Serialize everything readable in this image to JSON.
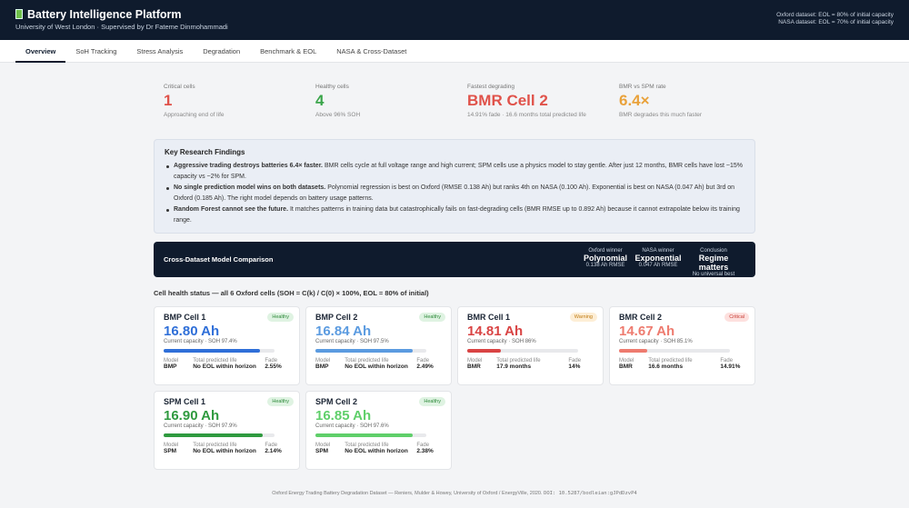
{
  "header": {
    "title": "Battery Intelligence Platform",
    "subtitle": "University of West London · Supervised by Dr Fateme Dinmohammadi",
    "notes": [
      "Oxford dataset: EOL = 80% of initial capacity",
      "NASA dataset: EOL = 70% of initial capacity"
    ]
  },
  "tabs": [
    "Overview",
    "SoH Tracking",
    "Stress Analysis",
    "Degradation",
    "Benchmark & EOL",
    "NASA & Cross-Dataset"
  ],
  "kpis": [
    {
      "label": "Critical cells",
      "value": "1",
      "note": "Approaching end of life",
      "color": "#e0524a"
    },
    {
      "label": "Healthy cells",
      "value": "4",
      "note": "Above 96% SOH",
      "color": "#3aa54a"
    },
    {
      "label": "Fastest degrading",
      "value": "BMR Cell 2",
      "note": "14.91% fade · 16.6 months total predicted life",
      "color": "#e0524a"
    },
    {
      "label": "BMR vs SPM rate",
      "value": "6.4×",
      "note": "BMR degrades this much faster",
      "color": "#e9a23b"
    }
  ],
  "findings": {
    "title": "Key Research Findings",
    "items": [
      {
        "bold": "Aggressive trading destroys batteries 6.4× faster.",
        "text": "BMR cells cycle at full voltage range and high current; SPM cells use a physics model to stay gentle. After just 12 months, BMR cells have lost ~15% capacity vs ~2% for SPM."
      },
      {
        "bold": "No single prediction model wins on both datasets.",
        "text": "Polynomial regression is best on Oxford (RMSE 0.138 Ah) but ranks 4th on NASA (0.100 Ah). Exponential is best on NASA (0.047 Ah) but 3rd on Oxford (0.185 Ah). The right model depends on battery usage patterns."
      },
      {
        "bold": "Random Forest cannot see the future.",
        "text": "It matches patterns in training data but catastrophically fails on fast-degrading cells (BMR RMSE up to 0.892 Ah) because it cannot extrapolate below its training range."
      }
    ]
  },
  "comparison": {
    "title": "Cross-Dataset Model Comparison",
    "stats": [
      {
        "label": "Oxford winner",
        "value": "Polynomial",
        "note": "0.138 Ah RMSE"
      },
      {
        "label": "NASA winner",
        "value": "Exponential",
        "note": "0.047 Ah RMSE"
      },
      {
        "label": "Conclusion",
        "value": "Regime matters",
        "note": "No universal best"
      }
    ]
  },
  "cells": {
    "heading": "Cell health status — all 6 Oxford cells (SOH = C(k) / C(0) × 100%, EOL = 80% of initial)",
    "eol_threshold": 80,
    "labels": {
      "capacity": "Current capacity",
      "model": "Model",
      "life": "Total predicted life",
      "fade": "Fade"
    },
    "items": [
      {
        "name": "BMP Cell 1",
        "status": "Healthy",
        "capacity": "16.80 Ah",
        "soh": 97.4,
        "soh_label": "SOH 97.4%",
        "model": "BMP",
        "life": "No EOL within horizon",
        "fade": "2.55%",
        "color": "#2f6fd8"
      },
      {
        "name": "BMP Cell 2",
        "status": "Healthy",
        "capacity": "16.84 Ah",
        "soh": 97.5,
        "soh_label": "SOH 97.5%",
        "model": "BMP",
        "life": "No EOL within horizon",
        "fade": "2.49%",
        "color": "#5b9be0"
      },
      {
        "name": "BMR Cell 1",
        "status": "Warning",
        "capacity": "14.81 Ah",
        "soh": 86,
        "soh_label": "SOH 86%",
        "model": "BMR",
        "life": "17.9 months",
        "fade": "14%",
        "color": "#d94444"
      },
      {
        "name": "BMR Cell 2",
        "status": "Critical",
        "capacity": "14.67 Ah",
        "soh": 85.1,
        "soh_label": "SOH 85.1%",
        "model": "BMR",
        "life": "16.6 months",
        "fade": "14.91%",
        "color": "#ee7b6f"
      },
      {
        "name": "SPM Cell 1",
        "status": "Healthy",
        "capacity": "16.90 Ah",
        "soh": 97.9,
        "soh_label": "SOH 97.9%",
        "model": "SPM",
        "life": "No EOL within horizon",
        "fade": "2.14%",
        "color": "#2f9a3f"
      },
      {
        "name": "SPM Cell 2",
        "status": "Healthy",
        "capacity": "16.85 Ah",
        "soh": 97.6,
        "soh_label": "SOH 97.6%",
        "model": "SPM",
        "life": "No EOL within horizon",
        "fade": "2.38%",
        "color": "#5fcf6a"
      }
    ]
  },
  "footer": {
    "text": "Oxford Energy Trading Battery Degradation Dataset — Reniers, Mulder & Howey, University of Oxford / EnergyVille, 2020.",
    "doi": "DOI: 10.5287/bodleian:gJPdDzvP4"
  }
}
